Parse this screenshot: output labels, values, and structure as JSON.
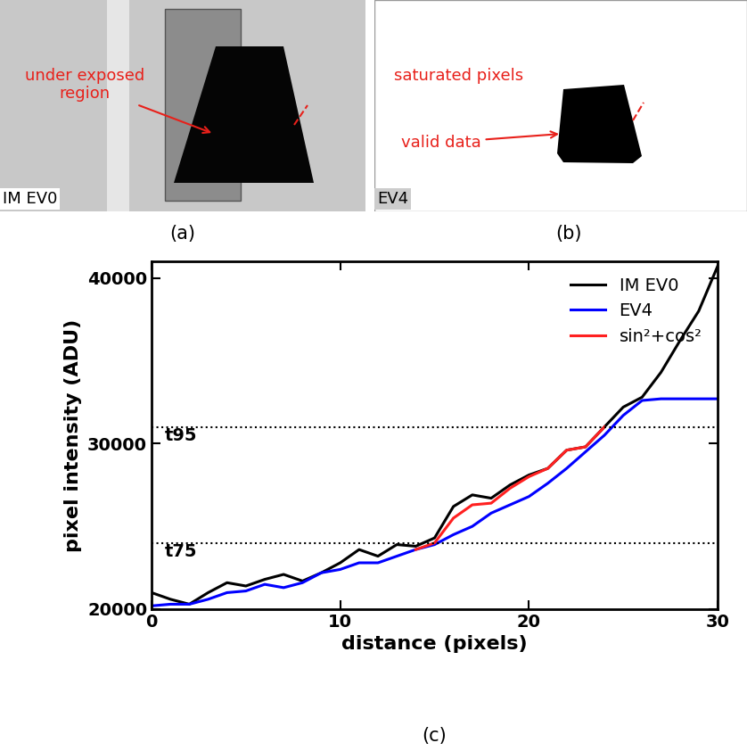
{
  "panels": [
    {
      "label": "(a)",
      "tag": "IM EV0",
      "annotations": [
        "under exposed region"
      ]
    },
    {
      "label": "(b)",
      "tag": "EV4",
      "annotations": [
        "saturated pixels",
        "valid data"
      ]
    }
  ],
  "chart_data": {
    "type": "line",
    "label": "(c)",
    "x_label": "distance (pixels)",
    "y_label": "pixel intensity (ADU)",
    "x": [
      0,
      1,
      2,
      3,
      4,
      5,
      6,
      7,
      8,
      9,
      10,
      11,
      12,
      13,
      14,
      15,
      16,
      17,
      18,
      19,
      20,
      21,
      22,
      23,
      24,
      25,
      26,
      27,
      28,
      29,
      30
    ],
    "series": [
      {
        "name": "IM EV0",
        "color": "#000000",
        "values": [
          21000,
          20600,
          20300,
          21000,
          21600,
          21400,
          21800,
          22100,
          21700,
          22200,
          22800,
          23600,
          23200,
          23900,
          23800,
          24300,
          26200,
          26900,
          26700,
          27500,
          28100,
          28500,
          29600,
          29800,
          31000,
          32200,
          32800,
          34300,
          36200,
          38000,
          40700
        ]
      },
      {
        "name": "EV4",
        "color": "#0000ff",
        "values": [
          20200,
          20300,
          20300,
          20600,
          21000,
          21100,
          21500,
          21300,
          21600,
          22200,
          22400,
          22800,
          22800,
          23200,
          23600,
          23900,
          24500,
          25000,
          25800,
          26300,
          26800,
          27600,
          28500,
          29500,
          30500,
          31700,
          32600,
          32700,
          32700,
          32700,
          32700
        ]
      },
      {
        "name": "sin²+cos²",
        "color": "#ff2020",
        "values": [
          null,
          null,
          null,
          null,
          null,
          null,
          null,
          null,
          null,
          null,
          null,
          null,
          null,
          null,
          23600,
          24000,
          25500,
          26300,
          26400,
          27300,
          28000,
          28500,
          29600,
          29800,
          31000,
          null,
          null,
          null,
          null,
          null,
          null
        ]
      }
    ],
    "reference_lines": [
      {
        "value": 31000,
        "label": "t95"
      },
      {
        "value": 24000,
        "label": "t75"
      }
    ],
    "xlim": [
      0,
      30
    ],
    "xticks": [
      0,
      10,
      20,
      30
    ],
    "ylim": [
      20000,
      41000
    ],
    "yticks": [
      20000,
      30000,
      40000
    ],
    "legend": "upper right"
  }
}
